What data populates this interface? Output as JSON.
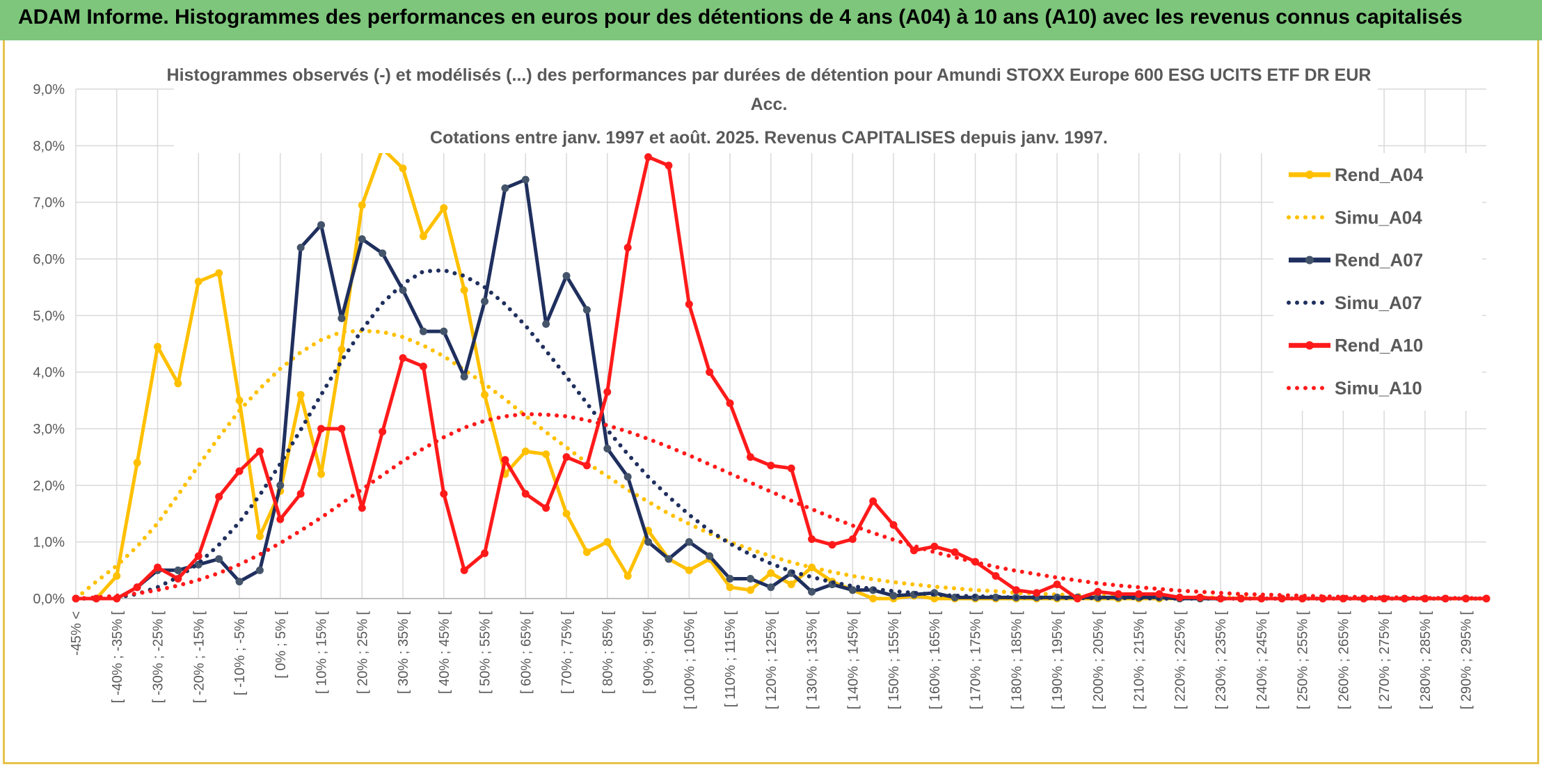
{
  "banner": {
    "text": "ADAM Informe. Histogrammes des performances en euros pour des détentions de 4 ans (A04) à 10 ans (A10) avec les revenus connus capitalisés",
    "color": "#7dc67b"
  },
  "chart_data": {
    "type": "line",
    "title_lines": [
      "Histogrammes observés (-) et modélisés (...) des performances par durées de détention pour Amundi STOXX Europe 600 ESG UCITS ETF DR EUR",
      "Acc.",
      "Cotations entre janv. 1997 et août. 2025. Revenus CAPITALISES depuis janv. 1997."
    ],
    "ylim": [
      0,
      9
    ],
    "y_ticks": [
      "0,0%",
      "1,0%",
      "2,0%",
      "3,0%",
      "4,0%",
      "5,0%",
      "6,0%",
      "7,0%",
      "8,0%",
      "9,0%"
    ],
    "y_unit": "%",
    "grid": true,
    "legend_position": "top-right",
    "x_tick_labels": [
      "-45% <",
      "[ -40% ; -35% [",
      "[ -30% ; -25% [",
      "[ -20% ; -15% [",
      "[ -10% ; -5% [",
      "[ 0% ; 5% [",
      "[ 10% ; 15% [",
      "[ 20% ; 25% [",
      "[ 30% ; 35% [",
      "[ 40% ; 45% [",
      "[ 50% ; 55% [",
      "[ 60% ; 65% [",
      "[ 70% ; 75% [",
      "[ 80% ; 85% [",
      "[ 90% ; 95% [",
      "[ 100% ; 105% [",
      "[ 110% ; 115% [",
      "[ 120% ; 125% [",
      "[ 130% ; 135% [",
      "[ 140% ; 145% [",
      "[ 150% ; 155% [",
      "[ 160% ; 165% [",
      "[ 170% ; 175% [",
      "[ 180% ; 185% [",
      "[ 190% ; 195% [",
      "[ 200% ; 205% [",
      "[ 210% ; 215% [",
      "[ 220% ; 225% [",
      "[ 230% ; 235% [",
      "[ 240% ; 245% [",
      "[ 250% ; 255% [",
      "[ 260% ; 265% [",
      "[ 270% ; 275% [",
      "[ 280% ; 285% [",
      "[ 290% ; 295% ["
    ],
    "series": [
      {
        "name": "Rend_A04",
        "color": "#ffc000",
        "style": "solid",
        "values": [
          0,
          0,
          0.4,
          2.4,
          4.45,
          3.8,
          5.6,
          5.75,
          3.5,
          1.1,
          1.9,
          3.6,
          2.2,
          4.4,
          6.95,
          7.95,
          7.6,
          6.4,
          6.9,
          5.45,
          3.6,
          2.2,
          2.6,
          2.55,
          1.5,
          0.82,
          1.0,
          0.4,
          1.2,
          0.7,
          0.5,
          0.7,
          0.2,
          0.15,
          0.45,
          0.25,
          0.55,
          0.3,
          0.15,
          0,
          0,
          0.05,
          0,
          0,
          0,
          0,
          0,
          0,
          0,
          0,
          0,
          0,
          0,
          0,
          0,
          0,
          0,
          0,
          0,
          0,
          0,
          0,
          0,
          0,
          0,
          0,
          0,
          0,
          0,
          0
        ]
      },
      {
        "name": "Simu_A04",
        "color": "#ffc000",
        "style": "dotted",
        "values": [
          0,
          0.3,
          0.58,
          0.92,
          1.33,
          1.83,
          2.35,
          2.85,
          3.32,
          3.71,
          4.06,
          4.35,
          4.57,
          4.71,
          4.73,
          4.71,
          4.62,
          4.47,
          4.28,
          4.04,
          3.79,
          3.52,
          3.23,
          2.94,
          2.67,
          2.4,
          2.16,
          1.92,
          1.71,
          1.5,
          1.32,
          1.15,
          1.0,
          0.87,
          0.75,
          0.64,
          0.55,
          0.47,
          0.4,
          0.34,
          0.29,
          0.25,
          0.21,
          0.18,
          0.15,
          0.13,
          0.1,
          0.09,
          0.07,
          0.06,
          0.05,
          0.04,
          0.03,
          0.03,
          0.02,
          0.02,
          0.02,
          0.01,
          0.01,
          0.01,
          0.01,
          0.01,
          0.01,
          0.01,
          0.01,
          0.01,
          0,
          0,
          0,
          0
        ]
      },
      {
        "name": "Rend_A07",
        "color": "#1f2f5e",
        "style": "solid",
        "values": [
          0,
          0,
          0,
          0.2,
          0.5,
          0.5,
          0.6,
          0.7,
          0.3,
          0.5,
          2.0,
          6.2,
          6.6,
          4.95,
          6.35,
          6.1,
          5.45,
          4.72,
          4.72,
          3.92,
          5.25,
          7.25,
          7.4,
          4.85,
          5.7,
          5.1,
          2.65,
          2.15,
          1.0,
          0.7,
          1.0,
          0.75,
          0.35,
          0.35,
          0.2,
          0.45,
          0.12,
          0.25,
          0.15,
          0.15,
          0.05,
          0.07,
          0.1,
          0.02,
          0.02,
          0.02,
          0.02,
          0.02,
          0.02,
          0.02,
          0.02,
          0.02,
          0.02,
          0.02,
          0,
          0,
          0,
          0,
          0,
          0,
          0,
          0,
          0,
          0,
          0,
          0,
          0,
          0,
          0,
          0
        ]
      },
      {
        "name": "Simu_A07",
        "color": "#1f2f5e",
        "style": "dotted",
        "values": [
          0,
          0,
          0.02,
          0.08,
          0.2,
          0.38,
          0.62,
          0.95,
          1.35,
          1.83,
          2.38,
          2.98,
          3.6,
          4.2,
          4.75,
          5.22,
          5.56,
          5.78,
          5.8,
          5.7,
          5.5,
          5.2,
          4.82,
          4.38,
          3.92,
          3.45,
          2.98,
          2.55,
          2.15,
          1.8,
          1.48,
          1.2,
          0.97,
          0.78,
          0.62,
          0.48,
          0.38,
          0.29,
          0.22,
          0.17,
          0.13,
          0.1,
          0.07,
          0.05,
          0.04,
          0.03,
          0.02,
          0.02,
          0.01,
          0.01,
          0.01,
          0.01,
          0.01,
          0,
          0,
          0,
          0,
          0,
          0,
          0,
          0,
          0,
          0,
          0,
          0,
          0,
          0,
          0,
          0,
          0
        ]
      },
      {
        "name": "Rend_A10",
        "color": "#ff1a1a",
        "style": "solid",
        "values": [
          0,
          0,
          0,
          0.2,
          0.55,
          0.35,
          0.75,
          1.8,
          2.25,
          2.6,
          1.4,
          1.85,
          3.0,
          3.0,
          1.6,
          2.95,
          4.25,
          4.1,
          1.85,
          0.5,
          0.8,
          2.45,
          1.85,
          1.6,
          2.5,
          2.35,
          3.65,
          6.2,
          7.8,
          7.65,
          5.2,
          4.0,
          3.45,
          2.5,
          2.35,
          2.3,
          1.05,
          0.95,
          1.05,
          1.72,
          1.3,
          0.85,
          0.92,
          0.82,
          0.65,
          0.4,
          0.15,
          0.1,
          0.25,
          0,
          0.12,
          0.08,
          0.08,
          0.08,
          0.02,
          0.02,
          0,
          0,
          0,
          0,
          0,
          0,
          0,
          0,
          0,
          0,
          0,
          0,
          0,
          0
        ]
      },
      {
        "name": "Simu_A10",
        "color": "#ff1a1a",
        "style": "dotted",
        "values": [
          0,
          0.02,
          0.05,
          0.09,
          0.15,
          0.23,
          0.33,
          0.45,
          0.6,
          0.78,
          0.98,
          1.2,
          1.43,
          1.68,
          1.93,
          2.18,
          2.43,
          2.65,
          2.85,
          3.02,
          3.14,
          3.22,
          3.26,
          3.25,
          3.22,
          3.15,
          3.06,
          2.95,
          2.82,
          2.68,
          2.53,
          2.37,
          2.21,
          2.05,
          1.89,
          1.73,
          1.58,
          1.43,
          1.29,
          1.16,
          1.04,
          0.93,
          0.82,
          0.73,
          0.64,
          0.56,
          0.49,
          0.43,
          0.37,
          0.32,
          0.27,
          0.23,
          0.2,
          0.17,
          0.14,
          0.12,
          0.1,
          0.08,
          0.07,
          0.06,
          0.05,
          0.04,
          0.03,
          0.03,
          0.02,
          0.02,
          0.01,
          0.01,
          0.01,
          0
        ]
      }
    ]
  }
}
